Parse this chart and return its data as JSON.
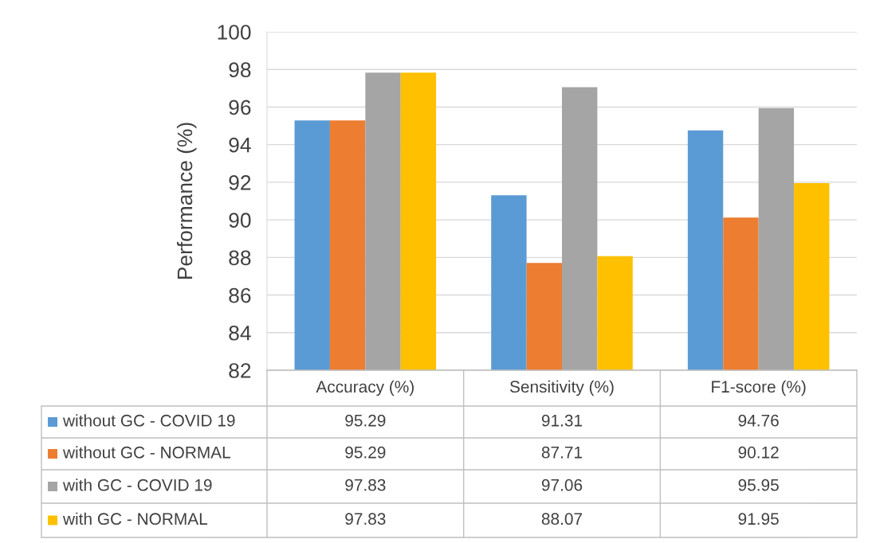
{
  "chart_data": {
    "type": "bar",
    "ylabel": "Performance (%)",
    "categories": [
      "Accuracy (%)",
      "Sensitivity (%)",
      "F1-score (%)"
    ],
    "series": [
      {
        "name": "without GC - COVID 19",
        "color": "#5b9bd5",
        "values": [
          95.29,
          91.31,
          94.76
        ]
      },
      {
        "name": "without GC - NORMAL",
        "color": "#ed7d31",
        "values": [
          95.29,
          87.71,
          90.12
        ]
      },
      {
        "name": "with GC - COVID 19",
        "color": "#a5a5a5",
        "values": [
          97.83,
          97.06,
          95.95
        ]
      },
      {
        "name": "with GC - NORMAL",
        "color": "#ffc000",
        "values": [
          97.83,
          88.07,
          91.95
        ]
      }
    ],
    "ylim": [
      82,
      100
    ],
    "yticks": [
      82,
      84,
      86,
      88,
      90,
      92,
      94,
      96,
      98,
      100
    ],
    "grid": "y",
    "legend": "bottom",
    "data_labels": true
  }
}
